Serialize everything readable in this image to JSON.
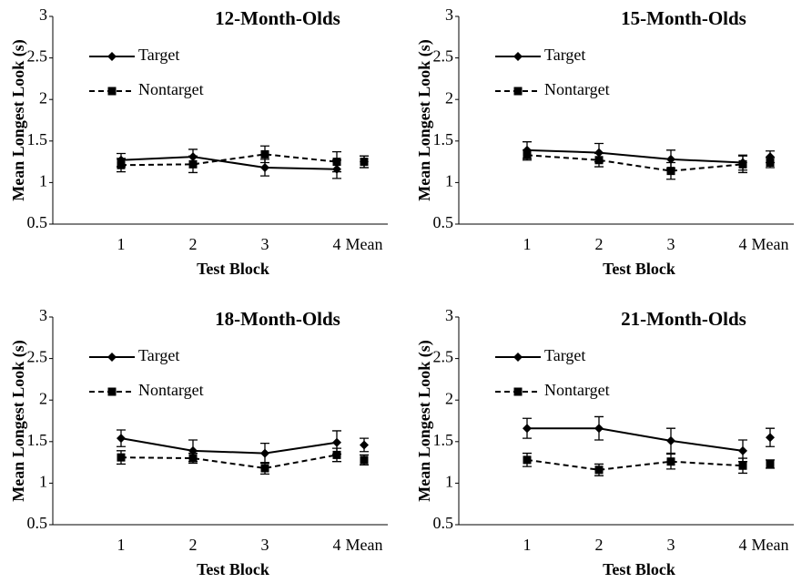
{
  "chart_data": [
    {
      "type": "line",
      "title": "12-Month-Olds",
      "xlabel": "Test Block",
      "ylabel": "Mean Longest Look (s)",
      "categories": [
        "1",
        "2",
        "3",
        "4",
        "Mean"
      ],
      "ylim": [
        0.5,
        3
      ],
      "yticks": [
        0.5,
        1,
        1.5,
        2,
        2.5,
        3
      ],
      "series": [
        {
          "name": "Target",
          "color": "#000000",
          "linestyle": "solid",
          "marker": "diamond",
          "values": [
            1.27,
            1.31,
            1.18,
            1.16,
            1.25
          ],
          "errors": [
            0.08,
            0.09,
            0.1,
            0.11,
            0.07
          ]
        },
        {
          "name": "Nontarget",
          "color": "#000000",
          "linestyle": "dashed",
          "marker": "square",
          "values": [
            1.21,
            1.22,
            1.34,
            1.25,
            1.25
          ],
          "errors": [
            0.08,
            0.1,
            0.1,
            0.12,
            0.07
          ]
        }
      ]
    },
    {
      "type": "line",
      "title": "15-Month-Olds",
      "xlabel": "Test Block",
      "ylabel": "Mean Longest Look (s)",
      "categories": [
        "1",
        "2",
        "3",
        "4",
        "Mean"
      ],
      "ylim": [
        0.5,
        3
      ],
      "yticks": [
        0.5,
        1,
        1.5,
        2,
        2.5,
        3
      ],
      "series": [
        {
          "name": "Target",
          "color": "#000000",
          "linestyle": "solid",
          "marker": "diamond",
          "values": [
            1.39,
            1.36,
            1.28,
            1.24,
            1.31
          ],
          "errors": [
            0.1,
            0.11,
            0.11,
            0.09,
            0.07
          ]
        },
        {
          "name": "Nontarget",
          "color": "#000000",
          "linestyle": "dashed",
          "marker": "square",
          "values": [
            1.33,
            1.27,
            1.14,
            1.22,
            1.24
          ],
          "errors": [
            0.06,
            0.08,
            0.1,
            0.1,
            0.06
          ]
        }
      ]
    },
    {
      "type": "line",
      "title": "18-Month-Olds",
      "xlabel": "Test Block",
      "ylabel": "Mean Longest Look (s)",
      "categories": [
        "1",
        "2",
        "3",
        "4",
        "Mean"
      ],
      "ylim": [
        0.5,
        3
      ],
      "yticks": [
        0.5,
        1,
        1.5,
        2,
        2.5,
        3
      ],
      "series": [
        {
          "name": "Target",
          "color": "#000000",
          "linestyle": "solid",
          "marker": "diamond",
          "values": [
            1.54,
            1.39,
            1.36,
            1.49,
            1.46
          ],
          "errors": [
            0.1,
            0.13,
            0.12,
            0.14,
            0.08
          ]
        },
        {
          "name": "Nontarget",
          "color": "#000000",
          "linestyle": "dashed",
          "marker": "square",
          "values": [
            1.31,
            1.3,
            1.18,
            1.34,
            1.28
          ],
          "errors": [
            0.08,
            0.06,
            0.07,
            0.08,
            0.06
          ]
        }
      ]
    },
    {
      "type": "line",
      "title": "21-Month-Olds",
      "xlabel": "Test Block",
      "ylabel": "Mean Longest Look (s)",
      "categories": [
        "1",
        "2",
        "3",
        "4",
        "Mean"
      ],
      "ylim": [
        0.5,
        3
      ],
      "yticks": [
        0.5,
        1,
        1.5,
        2,
        2.5,
        3
      ],
      "series": [
        {
          "name": "Target",
          "color": "#000000",
          "linestyle": "solid",
          "marker": "diamond",
          "values": [
            1.66,
            1.66,
            1.51,
            1.39,
            1.55
          ],
          "errors": [
            0.12,
            0.14,
            0.15,
            0.13,
            0.11
          ]
        },
        {
          "name": "Nontarget",
          "color": "#000000",
          "linestyle": "dashed",
          "marker": "square",
          "values": [
            1.28,
            1.16,
            1.26,
            1.21,
            1.23
          ],
          "errors": [
            0.08,
            0.07,
            0.09,
            0.09,
            0.05
          ]
        }
      ]
    }
  ]
}
